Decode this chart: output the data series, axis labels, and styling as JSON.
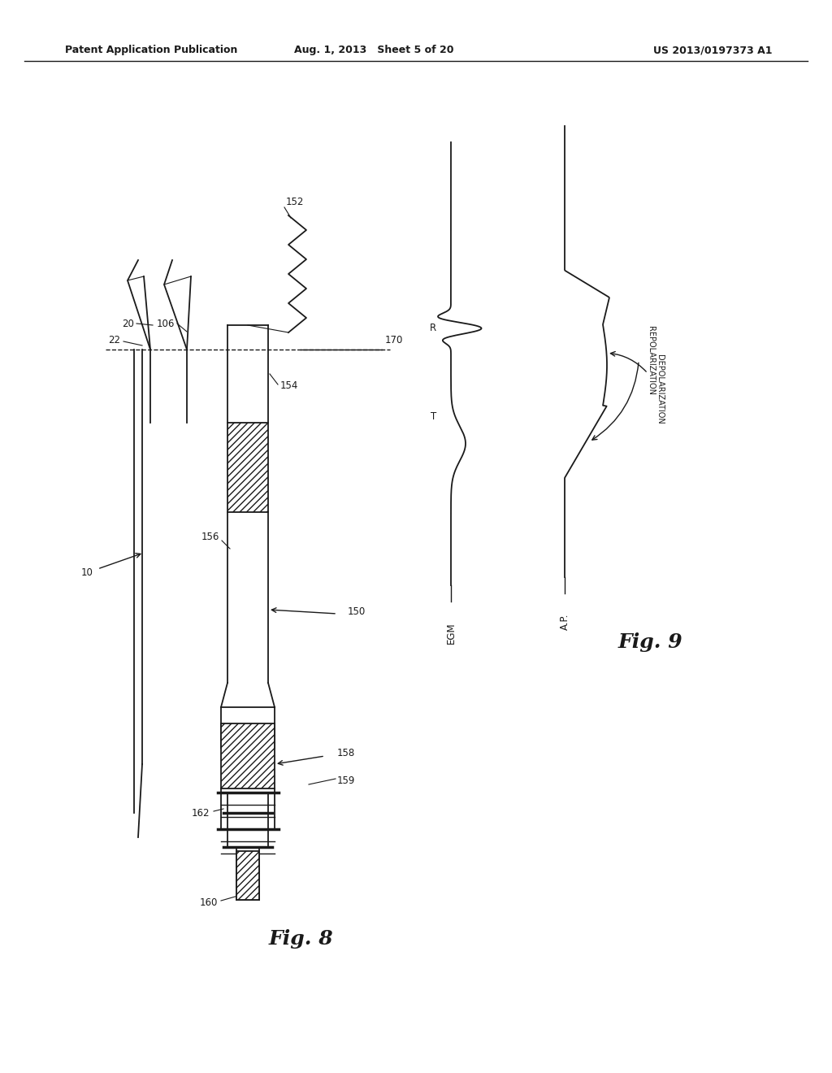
{
  "page_header_left": "Patent Application Publication",
  "page_header_center": "Aug. 1, 2013   Sheet 5 of 20",
  "page_header_right": "US 2013/0197373 A1",
  "fig8_label": "Fig. 8",
  "fig9_label": "Fig. 9",
  "bg_color": "#ffffff",
  "line_color": "#1a1a1a",
  "label_fontsize": 8.5,
  "header_fontsize": 9,
  "fig_label_fontsize": 18,
  "note_fontsize": 7
}
